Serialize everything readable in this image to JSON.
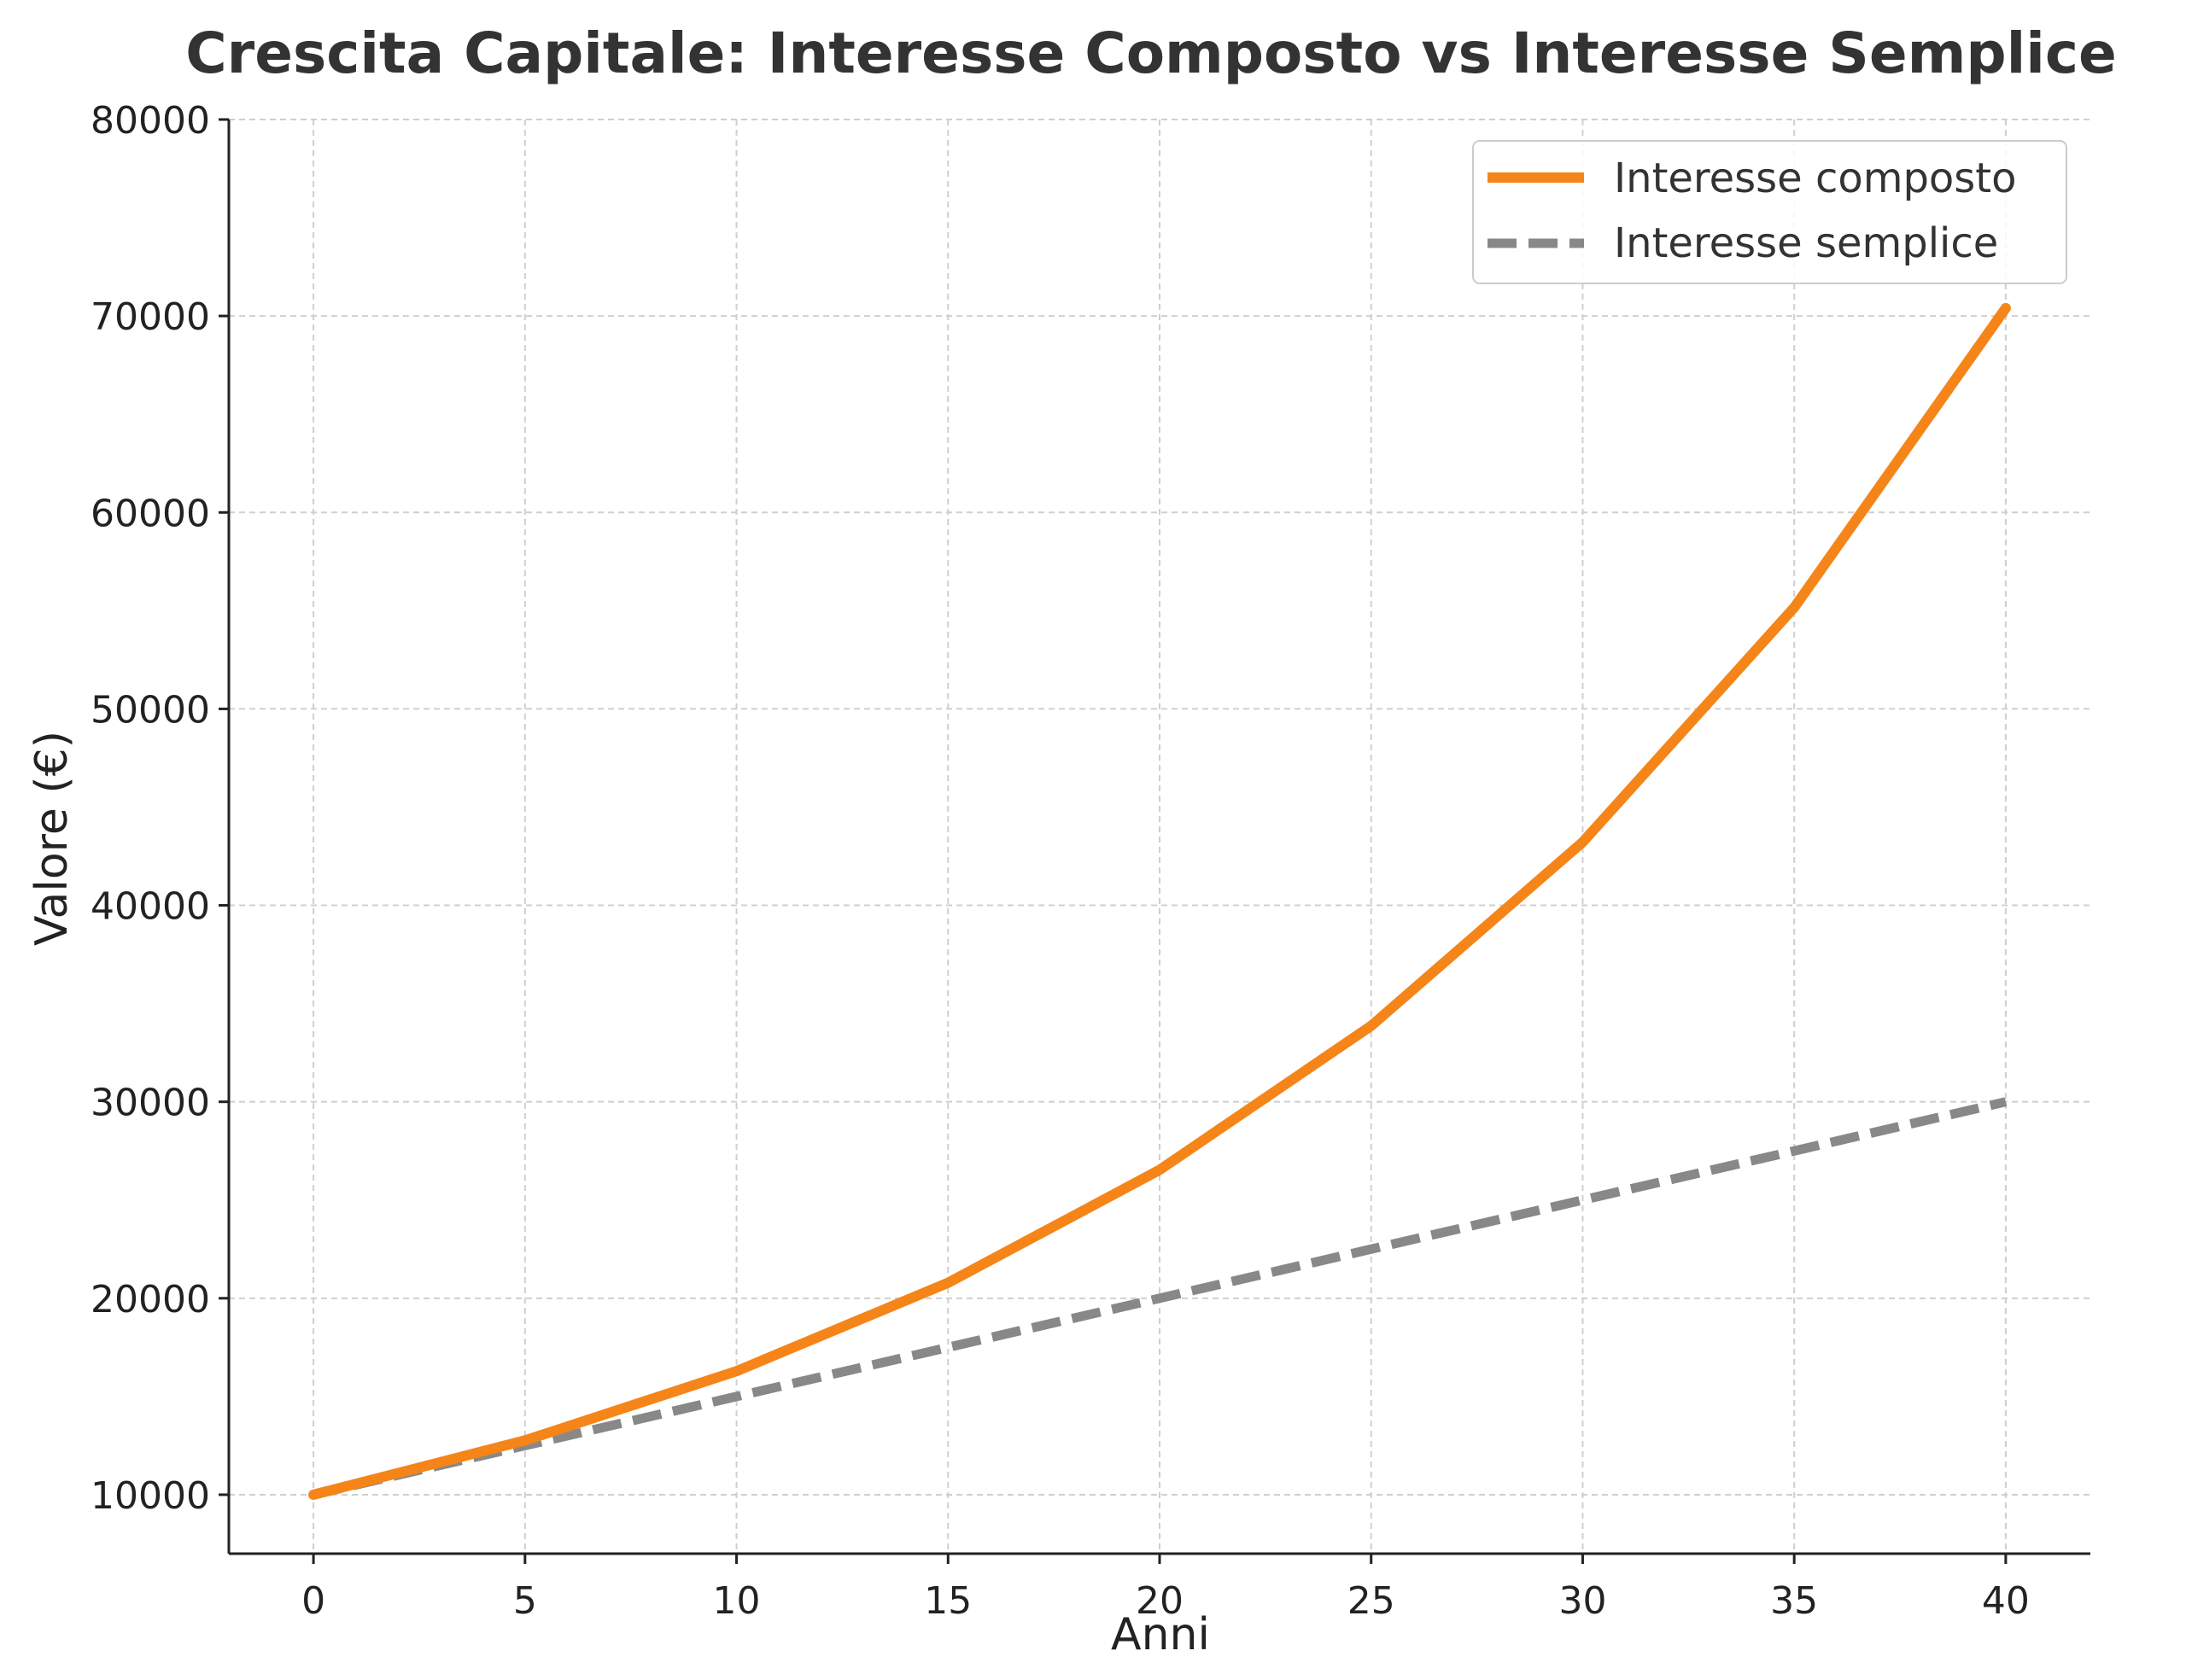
{
  "chart_data": {
    "type": "line",
    "title": "Crescita Capitale: Interesse Composto vs Interesse Semplice",
    "xlabel": "Anni",
    "ylabel": "Valore (€)",
    "x": [
      0,
      5,
      10,
      15,
      20,
      25,
      30,
      35,
      40
    ],
    "xlim": [
      -2,
      42
    ],
    "ylim": [
      7000,
      80000
    ],
    "xticks": [
      0,
      5,
      10,
      15,
      20,
      25,
      30,
      35,
      40
    ],
    "yticks": [
      10000,
      20000,
      30000,
      40000,
      50000,
      60000,
      70000,
      80000
    ],
    "x_tick_labels": [
      "0",
      "5",
      "10",
      "15",
      "20",
      "25",
      "30",
      "35",
      "40"
    ],
    "y_tick_labels": [
      "10000",
      "20000",
      "30000",
      "40000",
      "50000",
      "60000",
      "70000",
      "80000"
    ],
    "grid": true,
    "legend_position": "top-right",
    "series": [
      {
        "name": "Interesse composto",
        "color": "#f58518",
        "style": "solid",
        "values": [
          10000,
          12763,
          16289,
          20789,
          26533,
          33864,
          43219,
          55160,
          70400
        ]
      },
      {
        "name": "Interesse semplice",
        "color": "#888888",
        "style": "dashed",
        "values": [
          10000,
          12500,
          15000,
          17500,
          20000,
          22500,
          25000,
          27500,
          30000
        ]
      }
    ]
  }
}
